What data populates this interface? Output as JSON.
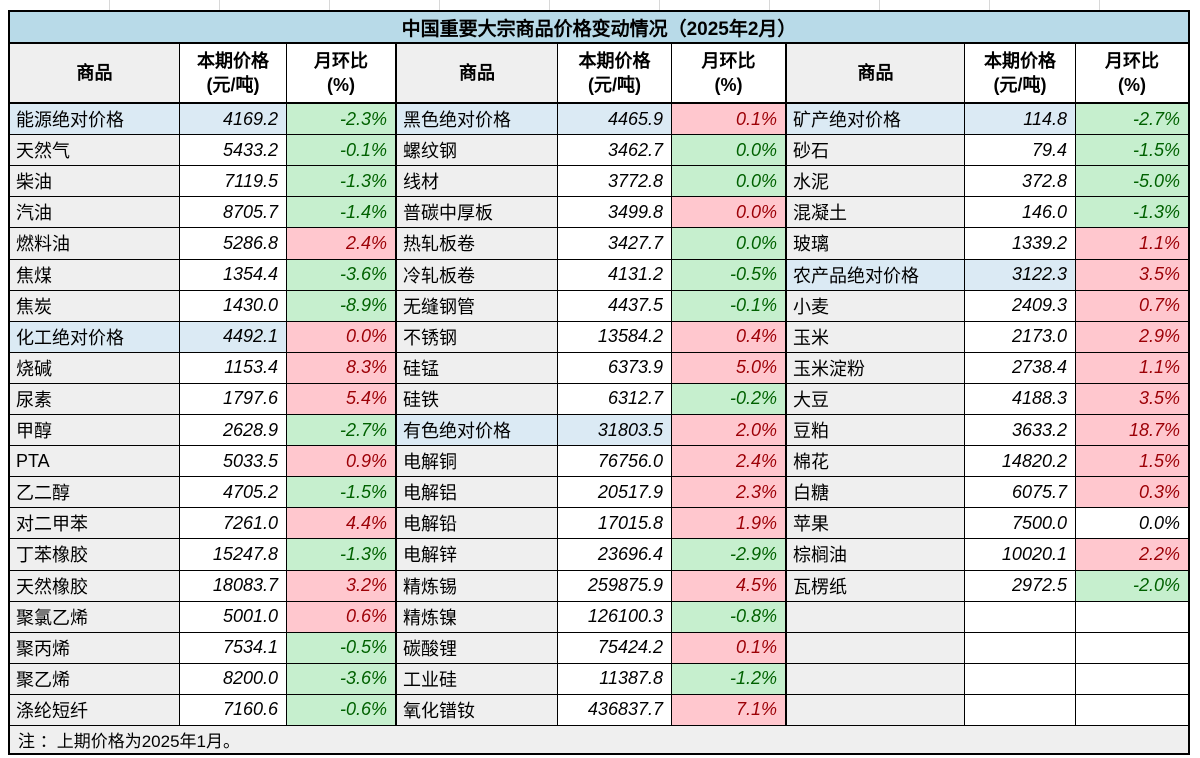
{
  "title": "中国重要大宗商品价格变动情况（2025年2月）",
  "footer_note": "注 ：上期价格为2025年1月。",
  "column_headers": {
    "commodity": "商品",
    "price_line1": "本期价格",
    "price_line2": "(元/吨)",
    "mom_line1": "月环比",
    "mom_line2": "(%)"
  },
  "colors": {
    "title_bg": "#b8dae8",
    "section_bg": "#dbeaf4",
    "name_cell_bg": "#efefef",
    "up_bg": "#ffc7ce",
    "up_text": "#9c0006",
    "down_bg": "#c6efce",
    "down_text": "#006100",
    "border": "#000000"
  },
  "groups": [
    {
      "rows": [
        {
          "name": "能源绝对价格",
          "price": "4169.2",
          "mom": "-2.3%",
          "style": "section",
          "mom_color": "green"
        },
        {
          "name": "天然气",
          "price": "5433.2",
          "mom": "-0.1%",
          "style": "item",
          "mom_color": "green"
        },
        {
          "name": "柴油",
          "price": "7119.5",
          "mom": "-1.3%",
          "style": "item",
          "mom_color": "green"
        },
        {
          "name": "汽油",
          "price": "8705.7",
          "mom": "-1.4%",
          "style": "item",
          "mom_color": "green"
        },
        {
          "name": "燃料油",
          "price": "5286.8",
          "mom": "2.4%",
          "style": "item",
          "mom_color": "red"
        },
        {
          "name": "焦煤",
          "price": "1354.4",
          "mom": "-3.6%",
          "style": "item",
          "mom_color": "green"
        },
        {
          "name": "焦炭",
          "price": "1430.0",
          "mom": "-8.9%",
          "style": "item",
          "mom_color": "green"
        },
        {
          "name": "化工绝对价格",
          "price": "4492.1",
          "mom": "0.0%",
          "style": "section",
          "mom_color": "red"
        },
        {
          "name": "烧碱",
          "price": "1153.4",
          "mom": "8.3%",
          "style": "item",
          "mom_color": "red"
        },
        {
          "name": "尿素",
          "price": "1797.6",
          "mom": "5.4%",
          "style": "item",
          "mom_color": "red"
        },
        {
          "name": "甲醇",
          "price": "2628.9",
          "mom": "-2.7%",
          "style": "item",
          "mom_color": "green"
        },
        {
          "name": "PTA",
          "price": "5033.5",
          "mom": "0.9%",
          "style": "item",
          "mom_color": "red"
        },
        {
          "name": "乙二醇",
          "price": "4705.2",
          "mom": "-1.5%",
          "style": "item",
          "mom_color": "green"
        },
        {
          "name": "对二甲苯",
          "price": "7261.0",
          "mom": "4.4%",
          "style": "item",
          "mom_color": "red"
        },
        {
          "name": "丁苯橡胶",
          "price": "15247.8",
          "mom": "-1.3%",
          "style": "item",
          "mom_color": "green"
        },
        {
          "name": "天然橡胶",
          "price": "18083.7",
          "mom": "3.2%",
          "style": "item",
          "mom_color": "red"
        },
        {
          "name": "聚氯乙烯",
          "price": "5001.0",
          "mom": "0.6%",
          "style": "item",
          "mom_color": "red"
        },
        {
          "name": "聚丙烯",
          "price": "7534.1",
          "mom": "-0.5%",
          "style": "item",
          "mom_color": "green"
        },
        {
          "name": "聚乙烯",
          "price": "8200.0",
          "mom": "-3.6%",
          "style": "item",
          "mom_color": "green"
        },
        {
          "name": "涤纶短纤",
          "price": "7160.6",
          "mom": "-0.6%",
          "style": "item",
          "mom_color": "green"
        }
      ]
    },
    {
      "rows": [
        {
          "name": "黑色绝对价格",
          "price": "4465.9",
          "mom": "0.1%",
          "style": "section",
          "mom_color": "red"
        },
        {
          "name": "螺纹钢",
          "price": "3462.7",
          "mom": "0.0%",
          "style": "item",
          "mom_color": "green"
        },
        {
          "name": "线材",
          "price": "3772.8",
          "mom": "0.0%",
          "style": "item",
          "mom_color": "green"
        },
        {
          "name": "普碳中厚板",
          "price": "3499.8",
          "mom": "0.0%",
          "style": "item",
          "mom_color": "red"
        },
        {
          "name": "热轧板卷",
          "price": "3427.7",
          "mom": "0.0%",
          "style": "item",
          "mom_color": "green"
        },
        {
          "name": "冷轧板卷",
          "price": "4131.2",
          "mom": "-0.5%",
          "style": "item",
          "mom_color": "green"
        },
        {
          "name": "无缝钢管",
          "price": "4437.5",
          "mom": "-0.1%",
          "style": "item",
          "mom_color": "green"
        },
        {
          "name": "不锈钢",
          "price": "13584.2",
          "mom": "0.4%",
          "style": "item",
          "mom_color": "red"
        },
        {
          "name": "硅锰",
          "price": "6373.9",
          "mom": "5.0%",
          "style": "item",
          "mom_color": "red"
        },
        {
          "name": "硅铁",
          "price": "6312.7",
          "mom": "-0.2%",
          "style": "item",
          "mom_color": "green"
        },
        {
          "name": "有色绝对价格",
          "price": "31803.5",
          "mom": "2.0%",
          "style": "section",
          "mom_color": "red"
        },
        {
          "name": "电解铜",
          "price": "76756.0",
          "mom": "2.4%",
          "style": "item",
          "mom_color": "red"
        },
        {
          "name": "电解铝",
          "price": "20517.9",
          "mom": "2.3%",
          "style": "item",
          "mom_color": "red"
        },
        {
          "name": "电解铅",
          "price": "17015.8",
          "mom": "1.9%",
          "style": "item",
          "mom_color": "red"
        },
        {
          "name": "电解锌",
          "price": "23696.4",
          "mom": "-2.9%",
          "style": "item",
          "mom_color": "green"
        },
        {
          "name": "精炼锡",
          "price": "259875.9",
          "mom": "4.5%",
          "style": "item",
          "mom_color": "red"
        },
        {
          "name": "精炼镍",
          "price": "126100.3",
          "mom": "-0.8%",
          "style": "item",
          "mom_color": "green"
        },
        {
          "name": "碳酸锂",
          "price": "75424.2",
          "mom": "0.1%",
          "style": "item",
          "mom_color": "red"
        },
        {
          "name": "工业硅",
          "price": "11387.8",
          "mom": "-1.2%",
          "style": "item",
          "mom_color": "green"
        },
        {
          "name": "氧化镨钕",
          "price": "436837.7",
          "mom": "7.1%",
          "style": "item",
          "mom_color": "red"
        }
      ]
    },
    {
      "rows": [
        {
          "name": "矿产绝对价格",
          "price": "114.8",
          "mom": "-2.7%",
          "style": "section",
          "mom_color": "green"
        },
        {
          "name": "砂石",
          "price": "79.4",
          "mom": "-1.5%",
          "style": "item",
          "mom_color": "green"
        },
        {
          "name": "水泥",
          "price": "372.8",
          "mom": "-5.0%",
          "style": "item",
          "mom_color": "green"
        },
        {
          "name": "混凝土",
          "price": "146.0",
          "mom": "-1.3%",
          "style": "item",
          "mom_color": "green"
        },
        {
          "name": "玻璃",
          "price": "1339.2",
          "mom": "1.1%",
          "style": "item",
          "mom_color": "red"
        },
        {
          "name": "农产品绝对价格",
          "price": "3122.3",
          "mom": "3.5%",
          "style": "section",
          "mom_color": "red"
        },
        {
          "name": "小麦",
          "price": "2409.3",
          "mom": "0.7%",
          "style": "item",
          "mom_color": "red"
        },
        {
          "name": "玉米",
          "price": "2173.0",
          "mom": "2.9%",
          "style": "item",
          "mom_color": "red"
        },
        {
          "name": "玉米淀粉",
          "price": "2738.4",
          "mom": "1.1%",
          "style": "item",
          "mom_color": "red"
        },
        {
          "name": "大豆",
          "price": "4188.3",
          "mom": "3.5%",
          "style": "item",
          "mom_color": "red"
        },
        {
          "name": "豆粕",
          "price": "3633.2",
          "mom": "18.7%",
          "style": "item",
          "mom_color": "red"
        },
        {
          "name": "棉花",
          "price": "14820.2",
          "mom": "1.5%",
          "style": "item",
          "mom_color": "red"
        },
        {
          "name": "白糖",
          "price": "6075.7",
          "mom": "0.3%",
          "style": "item",
          "mom_color": "red"
        },
        {
          "name": "苹果",
          "price": "7500.0",
          "mom": "0.0%",
          "style": "item",
          "mom_color": "black"
        },
        {
          "name": "棕榈油",
          "price": "10020.1",
          "mom": "2.2%",
          "style": "item",
          "mom_color": "red"
        },
        {
          "name": "瓦楞纸",
          "price": "2972.5",
          "mom": "-2.0%",
          "style": "item",
          "mom_color": "green"
        },
        {
          "name": "",
          "price": "",
          "mom": "",
          "style": "empty",
          "mom_color": "none"
        },
        {
          "name": "",
          "price": "",
          "mom": "",
          "style": "empty",
          "mom_color": "none"
        },
        {
          "name": "",
          "price": "",
          "mom": "",
          "style": "empty",
          "mom_color": "none"
        },
        {
          "name": "",
          "price": "",
          "mom": "",
          "style": "empty",
          "mom_color": "none"
        }
      ]
    }
  ]
}
